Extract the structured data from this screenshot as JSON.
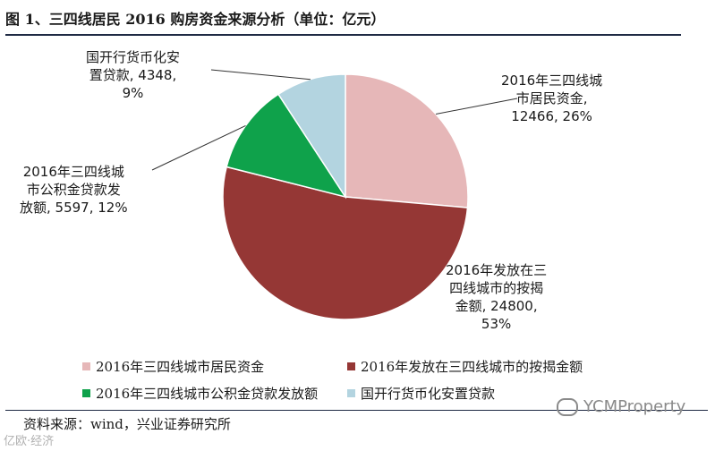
{
  "title": "图 1、三四线居民 2016 购房资金来源分析（单位：亿元）",
  "chart_data": {
    "type": "pie",
    "title": "图 1、三四线居民 2016 购房资金来源分析（单位：亿元）",
    "categories": [
      "2016年三四线城市居民资金",
      "2016年发放在三四线城市的按揭金额",
      "2016年三四线城市公积金贷款发放额",
      "国开行货币化安置贷款"
    ],
    "values": [
      12466,
      24800,
      5597,
      4348
    ],
    "percents": [
      "26%",
      "53%",
      "12%",
      "9%"
    ],
    "colors": [
      "#e6b7b8",
      "#953735",
      "#0fa24b",
      "#b3d4e0"
    ],
    "slice_labels": [
      [
        "2016年三四线城",
        "市居民资金,",
        "12466, 26%"
      ],
      [
        "2016年发放在三",
        "四线城市的按揭",
        "金额, 24800,",
        "53%"
      ],
      [
        "2016年三四线城",
        "市公积金贷款发",
        "放额, 5597, 12%"
      ],
      [
        "国开行货币化安",
        "置贷款, 4348,",
        "9%"
      ]
    ],
    "legend_position": "bottom"
  },
  "source": "资料来源：wind，兴业证券研究所",
  "watermark": "YCMProperty",
  "watermark2": "亿欧·经济"
}
